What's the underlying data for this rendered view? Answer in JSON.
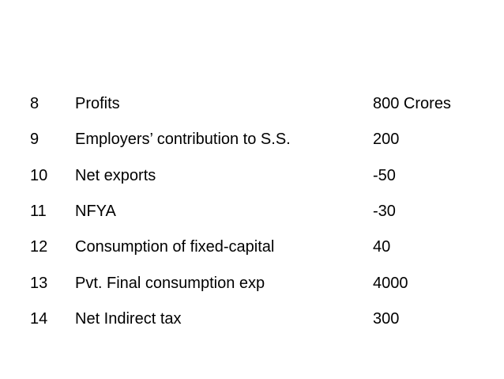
{
  "table": {
    "rows": [
      [
        "8",
        "Profits",
        "800 Crores"
      ],
      [
        "9",
        "Employers’ contribution to S.S.",
        "200"
      ],
      [
        "10",
        "Net exports",
        "-50"
      ],
      [
        "11",
        "NFYA",
        "-30"
      ],
      [
        "12",
        "Consumption of fixed-capital",
        "40"
      ],
      [
        "13",
        "Pvt. Final consumption exp",
        "4000"
      ],
      [
        "14",
        "Net Indirect tax",
        "300"
      ]
    ]
  }
}
